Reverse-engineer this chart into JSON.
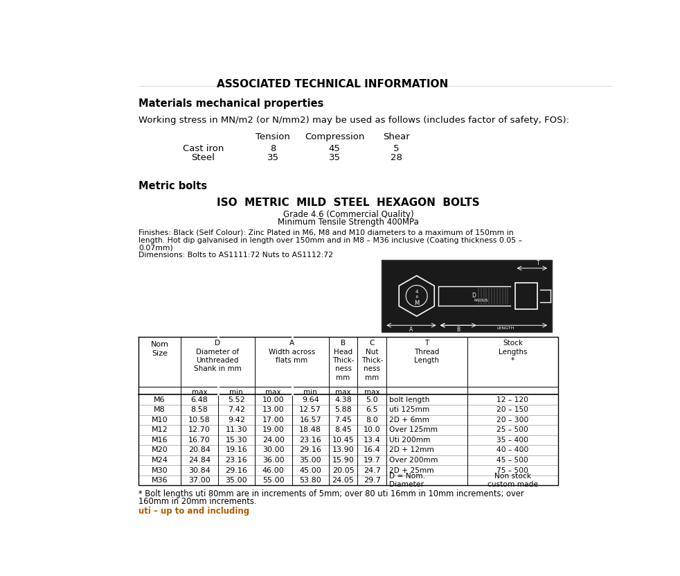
{
  "page_title": "Associated Technical Information",
  "section1_title": "Materials mechanical properties",
  "section1_intro": "Working stress in MN/m2 (or N/mm2) may be used as follows (includes factor of safety, FOS):",
  "stress_headers": [
    "Tension",
    "Compression",
    "Shear"
  ],
  "stress_row_labels": [
    "Cast iron",
    "Steel"
  ],
  "stress_rows": [
    [
      "8",
      "45",
      "5"
    ],
    [
      "35",
      "35",
      "28"
    ]
  ],
  "section2_title": "Metric bolts",
  "bolt_title": "ISO  METRIC  MILD  STEEL  HEXAGON  BOLTS",
  "bolt_subtitle1": "Grade 4.6 (Commercial Quality)",
  "bolt_subtitle2": "Minimum Tensile Strength 400MPa",
  "bolt_finishes_line1": "Finishes: Black (Self Colour): Zinc Plated in M6, M8 and M10 diameters to a maximum of 150mm in",
  "bolt_finishes_line2": "length. Hot dip galvanised in length over 150mm and in M8 – M36 inclusive (Coating thickness 0.05 –",
  "bolt_finishes_line3": "0.07mm)",
  "bolt_finishes_line4": "Dimensions: Bolts to AS1111:72 Nuts to AS1112:72",
  "table_rows": [
    [
      "M6",
      "6.48",
      "5.52",
      "10.00",
      "9.64",
      "4.38",
      "5.0",
      "bolt length",
      "12 – 120"
    ],
    [
      "M8",
      "8.58",
      "7.42",
      "13.00",
      "12.57",
      "5.88",
      "6.5",
      "uti 125mm",
      "20 – 150"
    ],
    [
      "M10",
      "10.58",
      "9.42",
      "17.00",
      "16.57",
      "7.45",
      "8.0",
      "2D + 6mm",
      "20 – 300"
    ],
    [
      "M12",
      "12.70",
      "11.30",
      "19.00",
      "18.48",
      "8.45",
      "10.0",
      "Over 125mm",
      "25 – 500"
    ],
    [
      "M16",
      "16.70",
      "15.30",
      "24.00",
      "23.16",
      "10.45",
      "13.4",
      "Uti 200mm",
      "35 – 400"
    ],
    [
      "M20",
      "20.84",
      "19.16",
      "30.00",
      "29.16",
      "13.90",
      "16.4",
      "2D + 12mm",
      "40 – 400"
    ],
    [
      "M24",
      "24.84",
      "23.16",
      "36.00",
      "35.00",
      "15.90",
      "19.7",
      "Over 200mm",
      "45 – 500"
    ],
    [
      "M30",
      "30.84",
      "29.16",
      "46.00",
      "45.00",
      "20.05",
      "24.7",
      "2D + 25mm",
      "75 – 500"
    ],
    [
      "M36",
      "37.00",
      "35.00",
      "55.00",
      "53.80",
      "24.05",
      "29.7",
      "D = Nom.\nDiameter",
      "Non stock\ncustom made"
    ]
  ],
  "footnote1": "* Bolt lengths uti 80mm are in increments of 5mm; over 80 uti 16mm in 10mm increments; over",
  "footnote2": "160mm in 20mm increments.",
  "footnote3": "uti – up to and including",
  "bg_color": "#ffffff",
  "text_color": "#000000",
  "orange_color": "#b35900"
}
